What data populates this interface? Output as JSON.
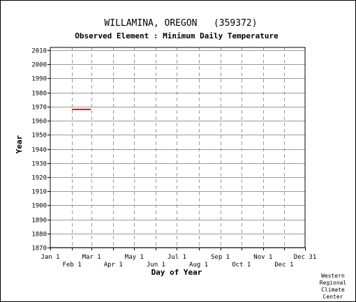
{
  "chart_data": {
    "type": "line",
    "title": "WILLAMINA, OREGON   (359372)",
    "subtitle": "Observed Element : Minimum Daily Temperature",
    "xlabel": "Day of Year",
    "ylabel": "Year",
    "x_ticks_top_row": [
      "Jan 1",
      "Mar 1",
      "May 1",
      "Jul 1",
      "Sep 1",
      "Nov 1",
      "Dec 31"
    ],
    "x_ticks_bottom_row": [
      "Feb 1",
      "Apr 1",
      "Jun 1",
      "Aug 1",
      "Oct 1",
      "Dec 1"
    ],
    "x_tick_days": [
      1,
      32,
      60,
      91,
      121,
      152,
      182,
      213,
      244,
      274,
      305,
      335,
      365
    ],
    "xlim": [
      1,
      365
    ],
    "ylim": [
      1870,
      2012
    ],
    "y_ticks": [
      1870,
      1880,
      1890,
      1900,
      1910,
      1920,
      1930,
      1940,
      1950,
      1960,
      1970,
      1980,
      1990,
      2000,
      2010
    ],
    "grid": true,
    "series": [
      {
        "color": "#ff0000",
        "segments": [
          {
            "year": 1968,
            "start_day": 32,
            "end_day": 59
          }
        ]
      }
    ]
  },
  "credit": [
    "Western",
    "Regional",
    "Climate",
    "Center"
  ]
}
